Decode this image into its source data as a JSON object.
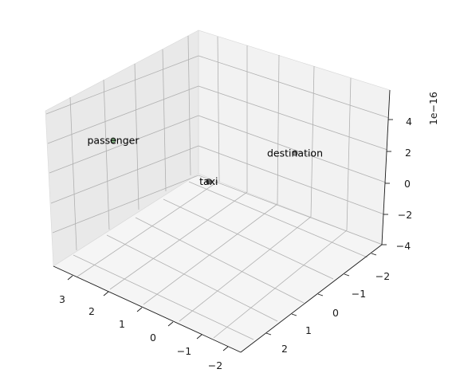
{
  "chart_data": {
    "type": "scatter3d",
    "offset_label": "1e−16",
    "grid": true,
    "x_axis": {
      "ticks": [
        3,
        2,
        1,
        0,
        -1,
        -2
      ],
      "tick_labels": [
        "3",
        "2",
        "1",
        "0",
        "−1",
        "−2"
      ]
    },
    "y_axis": {
      "ticks": [
        -2,
        -1,
        0,
        1,
        2
      ],
      "tick_labels": [
        "−2",
        "−1",
        "0",
        "1",
        "2"
      ]
    },
    "z_axis": {
      "ticks": [
        4,
        2,
        0,
        -2,
        -4
      ],
      "tick_labels": [
        "4",
        "2",
        "0",
        "−2",
        "−4"
      ]
    },
    "points": [
      {
        "label": "taxi",
        "x": -2,
        "y": -2.2,
        "z": 5,
        "color": "#555555"
      },
      {
        "label": "passenger",
        "x": 3,
        "y": 0,
        "z": 0,
        "color": "#7fbf7f"
      },
      {
        "label": "destination",
        "x": -1,
        "y": 2,
        "z": 0,
        "color": "#888888"
      }
    ]
  }
}
